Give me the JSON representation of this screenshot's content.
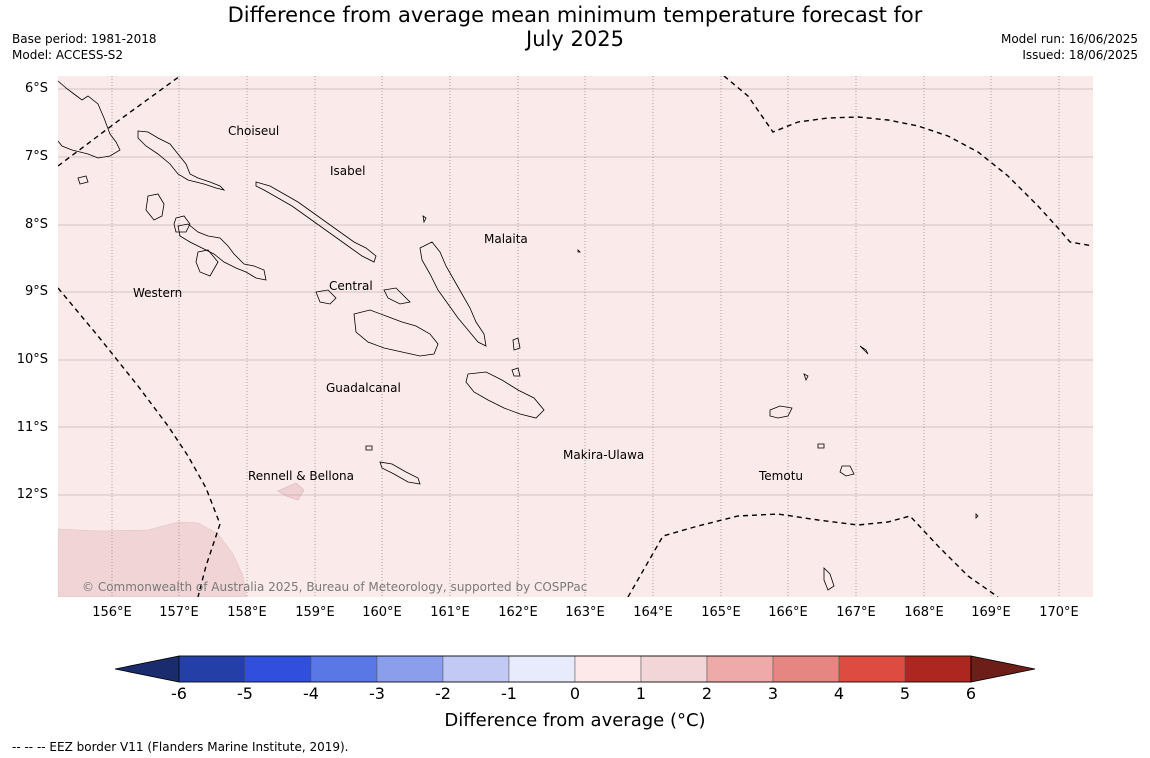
{
  "title": "Difference from average mean minimum temperature forecast for",
  "title_line2": "July 2025",
  "base_period": "Base period: 1981-2018",
  "model": "Model: ACCESS-S2",
  "model_run": "Model run: 16/06/2025",
  "issued": "Issued: 18/06/2025",
  "map": {
    "lat_labels": [
      "6°S",
      "7°S",
      "8°S",
      "9°S",
      "10°S",
      "11°S",
      "12°S"
    ],
    "lon_labels": [
      "156°E",
      "157°E",
      "158°E",
      "159°E",
      "160°E",
      "161°E",
      "162°E",
      "163°E",
      "164°E",
      "165°E",
      "166°E",
      "167°E",
      "168°E",
      "169°E",
      "170°E"
    ],
    "regions": [
      "Choiseul",
      "Isabel",
      "Malaita",
      "Western",
      "Central",
      "Guadalcanal",
      "Makira-Ulawa",
      "Rennell & Bellona",
      "Temotu"
    ],
    "background_color": "#fbeaea",
    "anomaly_patch_color": "#f0d4d6",
    "copyright": "© Commonwealth of Australia 2025, Bureau of Meteorology, supported by COSPPac"
  },
  "colorbar": {
    "ticks": [
      "-6",
      "-5",
      "-4",
      "-3",
      "-2",
      "-1",
      "0",
      "1",
      "2",
      "3",
      "4",
      "5",
      "6"
    ],
    "colors": [
      "#2440a8",
      "#2f4fdc",
      "#5a77e6",
      "#8a9eeb",
      "#c1c9f4",
      "#e8ebfb",
      "#fde9ea",
      "#f2d5d6",
      "#eeaaa8",
      "#e68682",
      "#dd4b41",
      "#ad2620"
    ],
    "under_color": "#1a2c6e",
    "over_color": "#6e1e18",
    "label": "Difference from average (°C)"
  },
  "footnote": "-- -- -- EEZ border V11 (Flanders Marine Institute, 2019)."
}
